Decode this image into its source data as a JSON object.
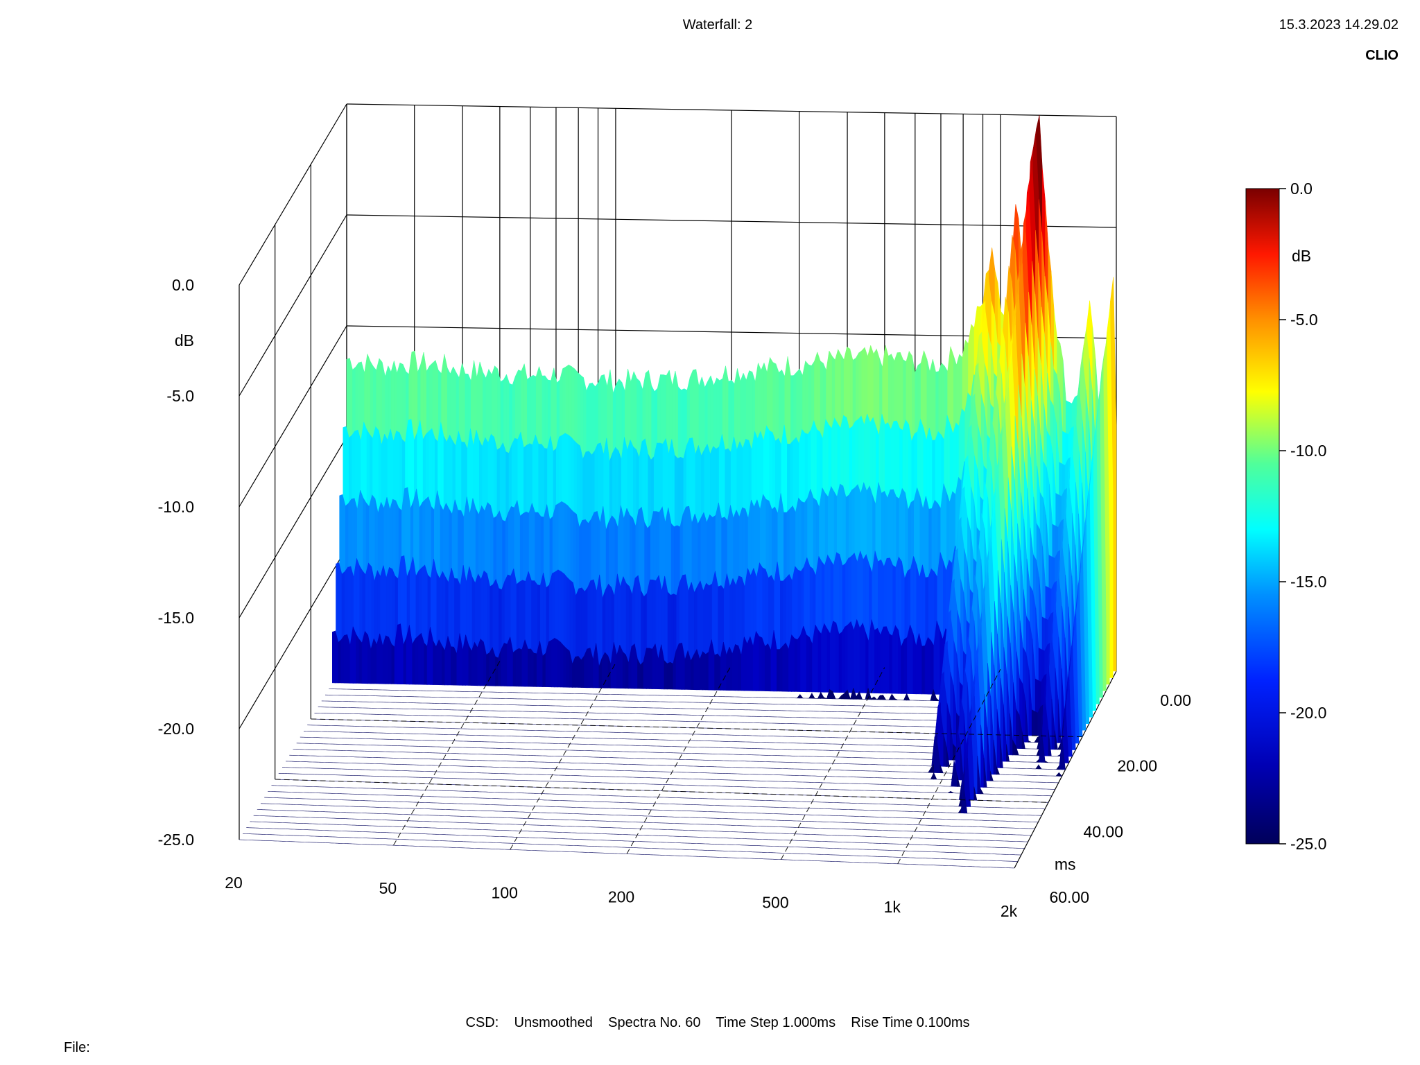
{
  "header": {
    "title": "Waterfall: 2",
    "timestamp": "15.3.2023 14.29.02",
    "brand": "CLIO"
  },
  "footer": {
    "info": "CSD:    Unsmoothed    Spectra No. 60    Time Step 1.000ms    Rise Time 0.100ms",
    "file_label": "File:"
  },
  "colors": {
    "scale": [
      "#00005a",
      "#0000c8",
      "#0040ff",
      "#00a0ff",
      "#00ffff",
      "#60ff90",
      "#ffff00",
      "#ff9000",
      "#ff0000",
      "#800000"
    ]
  },
  "chart_data": {
    "type": "waterfall",
    "title": "Waterfall: 2",
    "z_axis": {
      "unit": "dB",
      "range": [
        -25,
        0
      ],
      "tick_labels": [
        "0.0",
        "-5.0",
        "-10.0",
        "-15.0",
        "-20.0",
        "-25.0"
      ]
    },
    "x_axis": {
      "scale": "log",
      "range": [
        20,
        2000
      ],
      "tick_labels": [
        "20",
        "50",
        "100",
        "200",
        "500",
        "1k",
        "2k"
      ],
      "tick_values": [
        20,
        50,
        100,
        200,
        500,
        1000,
        2000
      ]
    },
    "y_axis": {
      "unit": "ms",
      "range": [
        0,
        60
      ],
      "tick_labels": [
        "0.00",
        "20.00",
        "40.00",
        "60.00"
      ],
      "tick_values": [
        0,
        20,
        40,
        60
      ]
    },
    "colorbar": {
      "unit": "dB",
      "range": [
        -25,
        0
      ],
      "tick_labels": [
        "0.0",
        "-5.0",
        "-10.0",
        "-15.0",
        "-20.0",
        "-25.0"
      ]
    },
    "front_spectrum_db": [
      [
        20,
        -11.5
      ],
      [
        25,
        -11.8
      ],
      [
        30,
        -11.6
      ],
      [
        35,
        -11.7
      ],
      [
        40,
        -11.9
      ],
      [
        50,
        -12.0
      ],
      [
        60,
        -12.1
      ],
      [
        70,
        -12.0
      ],
      [
        80,
        -12.2
      ],
      [
        100,
        -12.3
      ],
      [
        130,
        -12.2
      ],
      [
        160,
        -12.1
      ],
      [
        200,
        -11.8
      ],
      [
        250,
        -11.6
      ],
      [
        300,
        -11.4
      ],
      [
        400,
        -11.1
      ],
      [
        500,
        -11.0
      ],
      [
        600,
        -11.2
      ],
      [
        700,
        -11.3
      ],
      [
        800,
        -10.6
      ],
      [
        900,
        -8.5
      ],
      [
        950,
        -5.8
      ],
      [
        1000,
        -9.0
      ],
      [
        1050,
        -8.0
      ],
      [
        1100,
        -3.5
      ],
      [
        1150,
        -7.5
      ],
      [
        1200,
        -2.0
      ],
      [
        1260,
        0.0
      ],
      [
        1330,
        -5.5
      ],
      [
        1400,
        -9.5
      ],
      [
        1500,
        -13.0
      ],
      [
        1600,
        -12.2
      ],
      [
        1700,
        -8.2
      ],
      [
        1800,
        -13.0
      ],
      [
        1900,
        -9.8
      ],
      [
        1960,
        -6.0
      ],
      [
        2000,
        -13.5
      ]
    ],
    "footer": "CSD:    Unsmoothed    Spectra No. 60    Time Step 1.000ms    Rise Time 0.100ms"
  }
}
